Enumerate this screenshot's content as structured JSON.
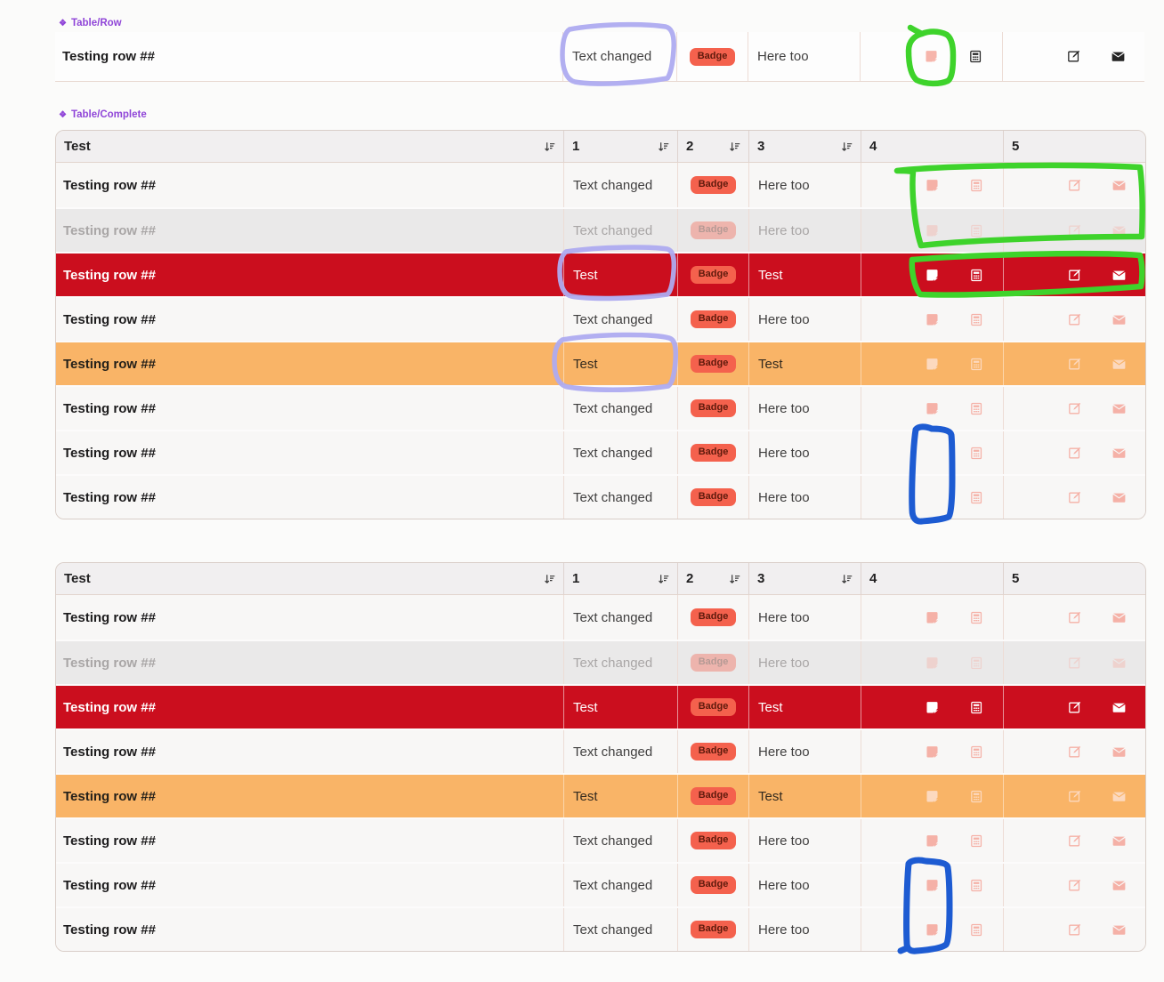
{
  "story_labels": {
    "diamond": "❖",
    "row": "Table/Row",
    "complete": "Table/Complete"
  },
  "table_header": {
    "columns": [
      {
        "label": "Test",
        "sortable": true
      },
      {
        "label": "1",
        "sortable": true
      },
      {
        "label": "2",
        "sortable": true
      },
      {
        "label": "3",
        "sortable": true
      },
      {
        "label": "4",
        "sortable": false
      },
      {
        "label": "5",
        "sortable": false
      }
    ]
  },
  "action_icons": [
    "note-icon",
    "calculator-icon",
    "edit-icon",
    "mail-icon"
  ],
  "single_row": {
    "variant": "normal",
    "title": "Testing row ##",
    "col1": "Text changed",
    "badge": "Badge",
    "col3": "Here too",
    "icons": {
      "note": true,
      "calculator": true,
      "edit": true,
      "mail": true
    }
  },
  "tables": [
    {
      "rows": [
        {
          "variant": "normal",
          "title": "Testing row ##",
          "col1": "Text changed",
          "badge": "Badge",
          "col3": "Here too",
          "icons": {
            "note": true,
            "calculator": true,
            "edit": true,
            "mail": true
          }
        },
        {
          "variant": "disabled",
          "title": "Testing row ##",
          "col1": "Text changed",
          "badge": "Badge",
          "col3": "Here too",
          "icons": {
            "note": true,
            "calculator": true,
            "edit": true,
            "mail": true
          }
        },
        {
          "variant": "danger",
          "title": "Testing row ##",
          "col1": "Test",
          "badge": "Badge",
          "col3": "Test",
          "icons": {
            "note": true,
            "calculator": true,
            "edit": true,
            "mail": true
          }
        },
        {
          "variant": "normal",
          "title": "Testing row ##",
          "col1": "Text changed",
          "badge": "Badge",
          "col3": "Here too",
          "icons": {
            "note": true,
            "calculator": true,
            "edit": true,
            "mail": true
          }
        },
        {
          "variant": "warning",
          "title": "Testing row ##",
          "col1": "Test",
          "badge": "Badge",
          "col3": "Test",
          "icons": {
            "note": true,
            "calculator": true,
            "edit": true,
            "mail": true
          }
        },
        {
          "variant": "normal",
          "title": "Testing row ##",
          "col1": "Text changed",
          "badge": "Badge",
          "col3": "Here too",
          "icons": {
            "note": true,
            "calculator": true,
            "edit": true,
            "mail": true
          }
        },
        {
          "variant": "normal",
          "title": "Testing row ##",
          "col1": "Text changed",
          "badge": "Badge",
          "col3": "Here too",
          "icons": {
            "note": false,
            "calculator": true,
            "edit": true,
            "mail": true
          }
        },
        {
          "variant": "normal",
          "title": "Testing row ##",
          "col1": "Text changed",
          "badge": "Badge",
          "col3": "Here too",
          "icons": {
            "note": false,
            "calculator": true,
            "edit": true,
            "mail": true
          }
        }
      ]
    },
    {
      "rows": [
        {
          "variant": "normal",
          "title": "Testing row ##",
          "col1": "Text changed",
          "badge": "Badge",
          "col3": "Here too",
          "icons": {
            "note": true,
            "calculator": true,
            "edit": true,
            "mail": true
          }
        },
        {
          "variant": "disabled",
          "title": "Testing row ##",
          "col1": "Text changed",
          "badge": "Badge",
          "col3": "Here too",
          "icons": {
            "note": true,
            "calculator": true,
            "edit": true,
            "mail": true
          }
        },
        {
          "variant": "danger",
          "title": "Testing row ##",
          "col1": "Test",
          "badge": "Badge",
          "col3": "Test",
          "icons": {
            "note": true,
            "calculator": true,
            "edit": true,
            "mail": true
          }
        },
        {
          "variant": "normal",
          "title": "Testing row ##",
          "col1": "Text changed",
          "badge": "Badge",
          "col3": "Here too",
          "icons": {
            "note": true,
            "calculator": true,
            "edit": true,
            "mail": true
          }
        },
        {
          "variant": "warning",
          "title": "Testing row ##",
          "col1": "Test",
          "badge": "Badge",
          "col3": "Test",
          "icons": {
            "note": true,
            "calculator": true,
            "edit": true,
            "mail": true
          }
        },
        {
          "variant": "normal",
          "title": "Testing row ##",
          "col1": "Text changed",
          "badge": "Badge",
          "col3": "Here too",
          "icons": {
            "note": true,
            "calculator": true,
            "edit": true,
            "mail": true
          }
        },
        {
          "variant": "normal",
          "title": "Testing row ##",
          "col1": "Text changed",
          "badge": "Badge",
          "col3": "Here too",
          "icons": {
            "note": true,
            "calculator": true,
            "edit": true,
            "mail": true
          }
        },
        {
          "variant": "normal",
          "title": "Testing row ##",
          "col1": "Text changed",
          "badge": "Badge",
          "col3": "Here too",
          "icons": {
            "note": true,
            "calculator": true,
            "edit": true,
            "mail": true
          }
        }
      ]
    }
  ],
  "colors": {
    "accent_purple": "#9046d8",
    "danger_row": "#cb0e1e",
    "warning_row": "#f9b467",
    "badge_bg": "#f4614d",
    "badge_text": "#5f1a0c",
    "annotation_green": "#3ed32b",
    "annotation_lavender": "#aeabf0",
    "annotation_blue": "#1d5bd2"
  }
}
